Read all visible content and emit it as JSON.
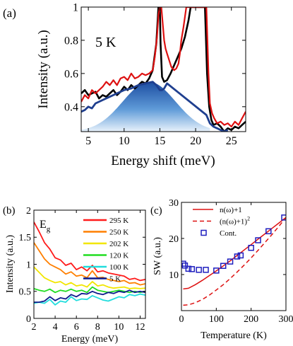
{
  "chart_data": [
    {
      "type": "line",
      "panel_label": "(a)",
      "annotation": "5 K",
      "xlabel": "Energy shift (meV)",
      "ylabel": "Intensity (a.u.)",
      "xlim": [
        4,
        27
      ],
      "ylim": [
        0.25,
        1.0
      ],
      "xticks": [
        5,
        10,
        15,
        20,
        25
      ],
      "yticks": [
        0.4,
        0.6,
        0.8,
        1
      ],
      "yticklabels": [
        "0.4",
        "0.6",
        "0.8",
        "1"
      ],
      "series": [
        {
          "color": "#000000",
          "x": [
            4,
            4.5,
            5,
            5.5,
            6,
            6.5,
            7,
            7.5,
            8,
            8.5,
            9,
            9.5,
            10,
            10.5,
            11,
            11.5,
            12,
            12.5,
            13,
            13.5,
            14,
            14.5,
            14.8,
            15.0,
            15.1,
            15.3,
            15.6,
            16.0,
            16.5,
            17.0,
            17.5,
            18.0,
            18.5,
            19.0,
            19.3,
            19.6,
            19.8,
            20.0,
            20.3,
            20.7,
            21.0,
            21.3,
            21.6,
            21.9,
            22.2,
            22.5,
            23.0,
            23.5,
            24.0,
            24.5,
            25.0,
            25.5,
            26.0,
            26.5,
            27.0
          ],
          "y": [
            0.48,
            0.5,
            0.47,
            0.48,
            0.49,
            0.45,
            0.47,
            0.46,
            0.48,
            0.5,
            0.47,
            0.49,
            0.52,
            0.5,
            0.53,
            0.51,
            0.53,
            0.55,
            0.54,
            0.57,
            0.62,
            0.78,
            1.0,
            1.0,
            0.78,
            0.58,
            0.55,
            0.56,
            0.6,
            0.65,
            0.7,
            0.75,
            0.82,
            0.92,
            1.0,
            1.0,
            1.0,
            1.0,
            1.0,
            1.0,
            1.0,
            1.0,
            0.6,
            0.4,
            0.32,
            0.29,
            0.3,
            0.28,
            0.25,
            0.27,
            0.26,
            0.28,
            0.27,
            0.29,
            0.31
          ]
        },
        {
          "color": "#dd1111",
          "x": [
            4,
            4.5,
            5,
            5.5,
            6,
            6.5,
            7,
            7.5,
            8,
            8.5,
            9,
            9.5,
            10,
            10.5,
            11,
            11.5,
            12,
            12.5,
            13,
            13.5,
            14,
            14.3,
            14.6,
            14.8,
            15.0,
            15.2,
            15.4,
            15.6,
            15.8,
            16.0,
            16.3,
            16.6,
            17.0,
            17.3,
            17.6,
            17.8,
            18.0,
            18.3,
            18.7,
            19.0,
            19.5,
            20.0,
            21.0,
            21.5,
            21.8,
            22.0,
            22.3,
            22.6,
            23.0,
            23.5,
            24.0,
            24.5,
            25.0,
            25.5,
            26.0,
            26.5,
            27.0
          ],
          "y": [
            0.43,
            0.47,
            0.45,
            0.5,
            0.48,
            0.5,
            0.52,
            0.55,
            0.53,
            0.56,
            0.53,
            0.57,
            0.58,
            0.56,
            0.6,
            0.57,
            0.58,
            0.6,
            0.59,
            0.6,
            0.62,
            0.7,
            0.82,
            0.95,
            1.0,
            1.0,
            0.9,
            0.8,
            0.75,
            0.72,
            0.68,
            0.64,
            0.62,
            0.63,
            0.66,
            0.72,
            0.8,
            0.88,
            1.0,
            1.0,
            1.0,
            1.0,
            1.0,
            1.0,
            0.6,
            0.42,
            0.36,
            0.33,
            0.3,
            0.31,
            0.29,
            0.3,
            0.28,
            0.31,
            0.29,
            0.33,
            0.37
          ]
        },
        {
          "color": "#1f3f8f",
          "x": [
            4,
            4.5,
            5,
            5.5,
            6,
            7,
            8,
            9,
            10,
            11,
            12,
            13,
            14,
            14.5,
            15.0,
            15.3,
            15.6,
            16.0,
            21.5,
            22.0,
            22.5,
            23.0,
            23.5,
            24.0,
            24.5
          ],
          "y": [
            0.37,
            0.38,
            0.4,
            0.39,
            0.42,
            0.44,
            0.46,
            0.48,
            0.5,
            0.51,
            0.53,
            0.54,
            0.55,
            0.53,
            0.5,
            0.5,
            0.51,
            0.54,
            0.35,
            0.3,
            0.28,
            0.27,
            0.26,
            0.25,
            0.26
          ]
        }
      ]
    },
    {
      "type": "line",
      "panel_label": "(b)",
      "annotation_main": "E",
      "annotation_sub": "g",
      "xlabel": "Energy (meV)",
      "ylabel": "Intensity (a.u.)",
      "xlim": [
        2,
        12.5
      ],
      "ylim": [
        0.0,
        2.0
      ],
      "xticks": [
        2,
        4,
        6,
        8,
        10,
        12
      ],
      "yticks": [
        0,
        0.5,
        1,
        1.5,
        2
      ],
      "yticklabels": [
        "0",
        "0.5",
        "1",
        "1.5",
        "2"
      ],
      "series": [
        {
          "name": "295 K",
          "color": "#ff1a1a",
          "x": [
            2,
            2.5,
            3,
            3.5,
            4,
            4.5,
            5,
            5.5,
            6,
            6.5,
            7,
            7.5,
            8,
            8.5,
            9,
            9.5,
            10,
            10.5,
            11,
            11.5,
            12,
            12.5
          ],
          "y": [
            1.78,
            1.6,
            1.4,
            1.28,
            1.12,
            1.08,
            0.98,
            1.02,
            0.9,
            0.95,
            0.88,
            0.98,
            0.86,
            0.88,
            0.84,
            0.82,
            0.8,
            0.78,
            0.72,
            0.74,
            0.7,
            0.72
          ]
        },
        {
          "name": "250 K",
          "color": "#ff7f00",
          "x": [
            2,
            2.5,
            3,
            3.5,
            4,
            4.5,
            5,
            5.5,
            6,
            6.5,
            7,
            7.5,
            8,
            8.5,
            9,
            9.5,
            10,
            10.5,
            11,
            11.5,
            12,
            12.5
          ],
          "y": [
            1.4,
            1.25,
            1.1,
            1.0,
            0.95,
            0.9,
            0.82,
            0.86,
            0.78,
            0.8,
            0.75,
            0.88,
            0.75,
            0.76,
            0.72,
            0.7,
            0.68,
            0.7,
            0.65,
            0.66,
            0.62,
            0.64
          ]
        },
        {
          "name": "202 K",
          "color": "#f2e600",
          "x": [
            2,
            2.5,
            3,
            3.5,
            4,
            4.5,
            5,
            5.5,
            6,
            6.5,
            7,
            7.5,
            8,
            8.5,
            9,
            9.5,
            10,
            10.5,
            11,
            11.5,
            12,
            12.5
          ],
          "y": [
            0.95,
            0.85,
            0.75,
            0.7,
            0.66,
            0.68,
            0.62,
            0.66,
            0.6,
            0.62,
            0.58,
            0.68,
            0.6,
            0.62,
            0.58,
            0.56,
            0.57,
            0.58,
            0.55,
            0.56,
            0.55,
            0.56
          ]
        },
        {
          "name": "120 K",
          "color": "#22dd22",
          "x": [
            2,
            2.5,
            3,
            3.5,
            4,
            4.5,
            5,
            5.5,
            6,
            6.5,
            7,
            7.5,
            8,
            8.5,
            9,
            9.5,
            10,
            10.5,
            11,
            11.5,
            12,
            12.5
          ],
          "y": [
            0.55,
            0.52,
            0.5,
            0.54,
            0.48,
            0.52,
            0.5,
            0.54,
            0.5,
            0.52,
            0.48,
            0.58,
            0.52,
            0.5,
            0.48,
            0.5,
            0.52,
            0.5,
            0.48,
            0.5,
            0.48,
            0.5
          ]
        },
        {
          "name": "100 K",
          "color": "#22dddd",
          "x": [
            2,
            2.5,
            3,
            3.5,
            4,
            4.5,
            5,
            5.5,
            6,
            6.5,
            7,
            7.5,
            8,
            8.5,
            9,
            9.5,
            10,
            10.5,
            11,
            11.5,
            12,
            12.5
          ],
          "y": [
            0.28,
            0.3,
            0.28,
            0.35,
            0.25,
            0.32,
            0.3,
            0.4,
            0.33,
            0.36,
            0.35,
            0.42,
            0.38,
            0.34,
            0.32,
            0.36,
            0.4,
            0.38,
            0.44,
            0.42,
            0.45,
            0.43
          ]
        },
        {
          "name": "5 K",
          "color": "#0d1a8c",
          "x": [
            2,
            2.5,
            3,
            3.5,
            4,
            4.5,
            5,
            5.5,
            6,
            6.5,
            7,
            7.5,
            8,
            8.5,
            9,
            9.5,
            10,
            10.5,
            11,
            11.5,
            12,
            12.5
          ],
          "y": [
            0.3,
            0.3,
            0.32,
            0.4,
            0.33,
            0.38,
            0.36,
            0.44,
            0.4,
            0.46,
            0.45,
            0.5,
            0.46,
            0.44,
            0.48,
            0.46,
            0.5,
            0.48,
            0.52,
            0.48,
            0.5,
            0.48
          ]
        }
      ]
    },
    {
      "type": "scatter",
      "panel_label": "(c)",
      "xlabel": "Temperature (K)",
      "ylabel": "SW (a.u.)",
      "xlim": [
        0,
        300
      ],
      "ylim": [
        0,
        30
      ],
      "xticks": [
        0,
        100,
        200,
        300
      ],
      "yticks": [
        10,
        20,
        30
      ],
      "legend_placement": "top-left",
      "series": [
        {
          "name": "n(ω)+1",
          "style": "solid",
          "color": "#dd1111",
          "x": [
            5,
            20,
            40,
            60,
            80,
            100,
            120,
            140,
            160,
            180,
            200,
            220,
            240,
            260,
            280,
            300
          ],
          "y": [
            6.0,
            6.2,
            7.2,
            8.4,
            9.7,
            11.0,
            12.4,
            13.8,
            15.3,
            16.8,
            18.3,
            19.8,
            21.3,
            22.8,
            24.3,
            25.8
          ]
        },
        {
          "name": "(n(ω)+1)",
          "name_superscript": "2",
          "style": "dashed",
          "color": "#dd1111",
          "x": [
            5,
            20,
            40,
            60,
            80,
            100,
            120,
            140,
            160,
            180,
            200,
            220,
            240,
            260,
            280,
            300
          ],
          "y": [
            1.5,
            1.6,
            2.2,
            3.1,
            4.3,
            5.7,
            7.2,
            8.9,
            10.7,
            12.6,
            14.6,
            16.7,
            18.9,
            21.1,
            23.4,
            25.8
          ]
        },
        {
          "name": "Cont.",
          "style": "marker-square",
          "color": "#1f1fbf",
          "x": [
            5,
            10,
            20,
            30,
            50,
            70,
            100,
            120,
            140,
            160,
            170,
            200,
            220,
            250,
            295
          ],
          "y": [
            13.0,
            12.5,
            11.6,
            11.5,
            11.3,
            11.3,
            11.1,
            12.4,
            13.6,
            15.0,
            15.3,
            17.4,
            19.5,
            22.0,
            25.8
          ]
        }
      ]
    }
  ]
}
